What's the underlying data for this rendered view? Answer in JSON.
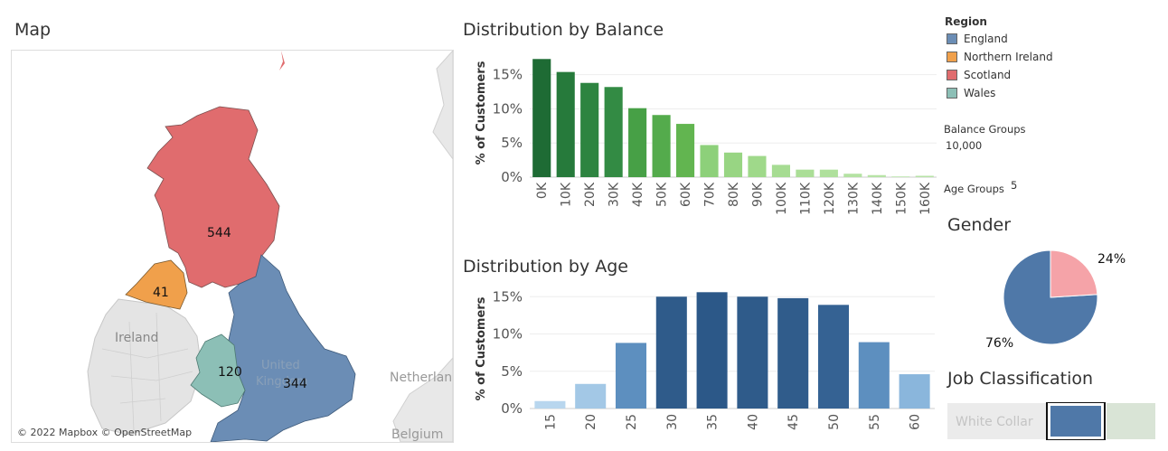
{
  "map": {
    "title": "Map",
    "labels": {
      "ireland": "Ireland",
      "uk": "United Kingdom",
      "netherlands": "Netherlan",
      "belgium": "Belgium"
    },
    "regions": [
      {
        "name": "Scotland",
        "value": "544"
      },
      {
        "name": "Northern Ireland",
        "value": "41"
      },
      {
        "name": "Wales",
        "value": "120"
      },
      {
        "name": "England",
        "value": "344"
      }
    ],
    "attribution": "© 2022 Mapbox © OpenStreetMap"
  },
  "legend": {
    "title": "Region",
    "items": [
      {
        "label": "England",
        "color": "#6b8db5"
      },
      {
        "label": "Northern Ireland",
        "color": "#f0a04b"
      },
      {
        "label": "Scotland",
        "color": "#e06c6e"
      },
      {
        "label": "Wales",
        "color": "#8cbfb6"
      }
    ]
  },
  "parameters": {
    "balance_label": "Balance Groups",
    "balance_value": "10,000",
    "age_label": "Age Groups",
    "age_value": "5"
  },
  "gender": {
    "title": "Gender",
    "labels": [
      "24%",
      "76%"
    ]
  },
  "job": {
    "title": "Job Classification",
    "label": "White Collar"
  },
  "chart_data": [
    {
      "type": "bar",
      "title": "Distribution by Balance",
      "ylabel": "% of Customers",
      "xlabel": "",
      "categories": [
        "0K",
        "10K",
        "20K",
        "30K",
        "40K",
        "50K",
        "60K",
        "70K",
        "80K",
        "90K",
        "100K",
        "110K",
        "120K",
        "130K",
        "140K",
        "150K",
        "160K"
      ],
      "values": [
        17.3,
        15.4,
        13.8,
        13.2,
        10.1,
        9.1,
        7.8,
        4.7,
        3.6,
        3.1,
        1.8,
        1.1,
        1.1,
        0.5,
        0.3,
        0.1,
        0.2
      ],
      "colors": [
        "#1e6b34",
        "#267a3b",
        "#2d8440",
        "#338b44",
        "#47a046",
        "#54ab4c",
        "#62b550",
        "#8dd07a",
        "#98d583",
        "#9fd98a",
        "#a6dc92",
        "#abde97",
        "#afe09c",
        "#b4e2a2",
        "#b6e3a5",
        "#b8e4a8",
        "#b7e3a6"
      ],
      "yticks": [
        "15%",
        "10%",
        "5%",
        "0%"
      ],
      "ylim": [
        0,
        18
      ]
    },
    {
      "type": "bar",
      "title": "Distribution by Age",
      "ylabel": "% of Customers",
      "xlabel": "",
      "categories": [
        "15",
        "20",
        "25",
        "30",
        "35",
        "40",
        "45",
        "50",
        "55",
        "60"
      ],
      "values": [
        1.0,
        3.3,
        8.8,
        15.0,
        15.6,
        15.0,
        14.8,
        13.9,
        8.9,
        4.6
      ],
      "colors": [
        "#b8d6ee",
        "#a3c8e6",
        "#5d8fbf",
        "#2f5b8a",
        "#2c5888",
        "#2f5b8a",
        "#305c8b",
        "#356293",
        "#5d8fbf",
        "#8ab6dc"
      ],
      "yticks": [
        "15%",
        "10%",
        "5%",
        "0%"
      ],
      "ylim": [
        0,
        16
      ]
    },
    {
      "type": "pie",
      "title": "Gender",
      "categories": [
        "",
        ""
      ],
      "values": [
        24,
        76
      ],
      "colors": [
        "#f5a3a8",
        "#4f78a8"
      ]
    }
  ]
}
